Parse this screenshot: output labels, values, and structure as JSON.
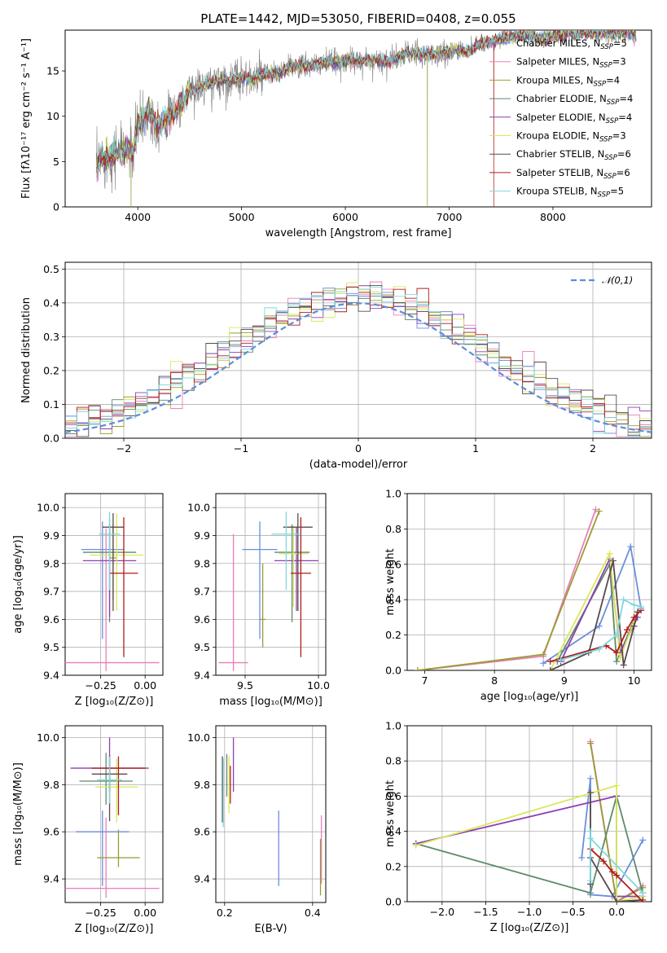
{
  "title": "PLATE=1442, MJD=53050, FIBERID=0408, z=0.055",
  "colors": [
    "#6a8fdc",
    "#e87fb8",
    "#9b9b33",
    "#5f8a6a",
    "#8e3fb0",
    "#d8e85a",
    "#5a4a4a",
    "#b01c1c",
    "#7fd8dc"
  ],
  "series_names": [
    "Chabrier MILES, N$_{SSP}$=5",
    "Salpeter MILES, N$_{SSP}$=3",
    "Kroupa MILES, N$_{SSP}$=4",
    "Chabrier ELODIE, N$_{SSP}$=4",
    "Salpeter ELODIE, N$_{SSP}$=4",
    "Kroupa ELODIE, N$_{SSP}$=3",
    "Chabrier STELIB, N$_{SSP}$=6",
    "Salpeter STELIB, N$_{SSP}$=6",
    "Kroupa STELIB, N$_{SSP}$=5"
  ],
  "legend_labels": [
    {
      "name": "Chabrier MILES, N",
      "sub": "SSP",
      "rest": "=5"
    },
    {
      "name": "Salpeter MILES, N",
      "sub": "SSP",
      "rest": "=3"
    },
    {
      "name": "Kroupa MILES, N",
      "sub": "SSP",
      "rest": "=4"
    },
    {
      "name": "Chabrier ELODIE, N",
      "sub": "SSP",
      "rest": "=4"
    },
    {
      "name": "Salpeter ELODIE, N",
      "sub": "SSP",
      "rest": "=4"
    },
    {
      "name": "Kroupa ELODIE, N",
      "sub": "SSP",
      "rest": "=3"
    },
    {
      "name": "Chabrier STELIB, N",
      "sub": "SSP",
      "rest": "=6"
    },
    {
      "name": "Salpeter STELIB, N",
      "sub": "SSP",
      "rest": "=6"
    },
    {
      "name": "Kroupa STELIB, N",
      "sub": "SSP",
      "rest": "=5"
    }
  ],
  "chart_data": [
    {
      "id": "spectrum",
      "type": "line",
      "xlabel": "wavelength [Angstrom, rest frame]",
      "ylabel": "Flux [fλ10⁻¹⁷ erg cm⁻² s⁻¹ A⁻¹]",
      "xlim": [
        3300,
        8950
      ],
      "ylim": [
        0,
        19.5
      ],
      "xticks": [
        4000,
        5000,
        6000,
        7000,
        8000
      ],
      "yticks": [
        0,
        5,
        10,
        15
      ],
      "data_color": "#808080",
      "continuum_x": [
        3600,
        3650,
        3700,
        3800,
        3900,
        3950,
        4000,
        4100,
        4200,
        4300,
        4400,
        4500,
        4600,
        4700,
        4800,
        4900,
        5000,
        5100,
        5200,
        5300,
        5400,
        5500,
        5600,
        5700,
        5800,
        5900,
        6000,
        6100,
        6200,
        6300,
        6400,
        6500,
        6600,
        6700,
        6800,
        6900,
        7000,
        7100,
        7200,
        7300,
        7400,
        7500,
        7600,
        7700,
        7800,
        7900,
        8000,
        8100,
        8200,
        8300,
        8400,
        8500,
        8600,
        8700,
        8800
      ],
      "continuum_y": [
        4.2,
        5.5,
        5.5,
        6.0,
        6.5,
        5.8,
        9.0,
        10.5,
        9.0,
        10.0,
        11.0,
        12.8,
        13.2,
        13.5,
        14.0,
        14.0,
        14.4,
        14.0,
        14.6,
        14.6,
        15.0,
        15.5,
        15.5,
        15.6,
        15.9,
        16.0,
        16.0,
        16.1,
        16.1,
        16.2,
        16.0,
        16.4,
        17.0,
        16.8,
        16.8,
        16.9,
        17.0,
        17.3,
        17.2,
        18.0,
        18.2,
        18.6,
        18.8,
        19.0,
        18.8,
        18.6,
        18.9,
        19.0,
        19.1,
        19.2,
        19.1,
        19.2,
        19.0,
        19.4,
        18.8
      ],
      "dropouts": [
        {
          "series": 2,
          "x": 3935
        },
        {
          "series": 2,
          "x": 6790
        },
        {
          "series": 7,
          "x": 7430
        }
      ]
    },
    {
      "id": "residuals",
      "type": "histogram",
      "xlabel": "(data-model)/error",
      "ylabel": "Normed distribution",
      "xlim": [
        -2.5,
        2.5
      ],
      "ylim": [
        0,
        0.52
      ],
      "xticks": [
        -2,
        -1,
        0,
        1,
        2
      ],
      "yticks": [
        0,
        0.1,
        0.2,
        0.3,
        0.4,
        0.5
      ],
      "bin_width": 0.1,
      "gaussian_label": "𝒩(0,1)"
    },
    {
      "id": "age_vs_Z",
      "type": "errorbar",
      "xlabel": "Z [log₁₀(Z/Z⊙)]",
      "ylabel": "age  [log₁₀(age/yr)]",
      "xlim": [
        -0.45,
        0.1
      ],
      "ylim": [
        9.4,
        10.05
      ],
      "xticks": [
        -0.25,
        0.0
      ],
      "yticks": [
        9.4,
        9.5,
        9.6,
        9.7,
        9.8,
        9.9,
        10.0
      ],
      "points": [
        {
          "x": -0.24,
          "xerr": 0.12,
          "y": 9.85,
          "yerr_lo": 0.32,
          "yerr_hi": 0.1
        },
        {
          "x": -0.22,
          "xerr": 0.3,
          "y": 9.445,
          "yerr_lo": 0.03,
          "yerr_hi": 0.48
        },
        {
          "x": -0.18,
          "xerr": 0.02,
          "y": 9.82,
          "yerr_lo": 0.15,
          "yerr_hi": 0.12
        },
        {
          "x": -0.2,
          "xerr": 0.15,
          "y": 9.84,
          "yerr_lo": 0.25,
          "yerr_hi": 0.12
        },
        {
          "x": -0.2,
          "xerr": 0.15,
          "y": 9.81,
          "yerr_lo": 0.2,
          "yerr_hi": 0.13
        },
        {
          "x": -0.16,
          "xerr": 0.15,
          "y": 9.83,
          "yerr_lo": 0.2,
          "yerr_hi": 0.15
        },
        {
          "x": -0.18,
          "xerr": 0.06,
          "y": 9.93,
          "yerr_lo": 0.3,
          "yerr_hi": 0.05
        },
        {
          "x": -0.12,
          "xerr": 0.08,
          "y": 9.765,
          "yerr_lo": 0.3,
          "yerr_hi": 0.2
        },
        {
          "x": -0.2,
          "xerr": 0.06,
          "y": 9.905,
          "yerr_lo": 0.2,
          "yerr_hi": 0.08
        }
      ]
    },
    {
      "id": "age_vs_mass",
      "type": "errorbar",
      "xlabel": "mass [log₁₀(M/M⊙)]",
      "xlim": [
        9.3,
        10.05
      ],
      "ylim": [
        9.4,
        10.05
      ],
      "xticks": [
        9.5,
        10.0
      ],
      "yticks": [
        9.4,
        9.5,
        9.6,
        9.7,
        9.8,
        9.9,
        10.0
      ],
      "points": [
        {
          "x": 9.6,
          "xerr": 0.12,
          "y": 9.85,
          "yerr_lo": 0.32,
          "yerr_hi": 0.1
        },
        {
          "x": 9.42,
          "xerr": 0.1,
          "y": 9.445,
          "yerr_lo": 0.03,
          "yerr_hi": 0.46
        },
        {
          "x": 9.62,
          "xerr": 0.02,
          "y": 9.6,
          "yerr_lo": 0.1,
          "yerr_hi": 0.2
        },
        {
          "x": 9.82,
          "xerr": 0.12,
          "y": 9.84,
          "yerr_lo": 0.25,
          "yerr_hi": 0.1
        },
        {
          "x": 9.85,
          "xerr": 0.15,
          "y": 9.81,
          "yerr_lo": 0.18,
          "yerr_hi": 0.12
        },
        {
          "x": 9.83,
          "xerr": 0.1,
          "y": 9.835,
          "yerr_lo": 0.19,
          "yerr_hi": 0.1
        },
        {
          "x": 9.86,
          "xerr": 0.1,
          "y": 9.93,
          "yerr_lo": 0.3,
          "yerr_hi": 0.05
        },
        {
          "x": 9.88,
          "xerr": 0.07,
          "y": 9.765,
          "yerr_lo": 0.3,
          "yerr_hi": 0.2
        },
        {
          "x": 9.78,
          "xerr": 0.1,
          "y": 9.905,
          "yerr_lo": 0.2,
          "yerr_hi": 0.08
        }
      ]
    },
    {
      "id": "weight_vs_age",
      "type": "line",
      "xlabel": "age  [log₁₀(age/yr)]",
      "ylabel": "mass weight",
      "xlim": [
        6.75,
        10.25
      ],
      "ylim": [
        0,
        1
      ],
      "xticks": [
        7,
        8,
        9,
        10
      ],
      "yticks": [
        0,
        0.2,
        0.4,
        0.6,
        0.8,
        1.0
      ],
      "series": [
        {
          "x": [
            8.7,
            9.5,
            9.95,
            10.1
          ],
          "y": [
            0.04,
            0.25,
            0.7,
            0.35
          ]
        },
        {
          "x": [
            6.9,
            8.7,
            9.45
          ],
          "y": [
            0.0,
            0.08,
            0.91
          ]
        },
        {
          "x": [
            6.9,
            8.7,
            9.5
          ],
          "y": [
            0.0,
            0.09,
            0.9
          ]
        },
        {
          "x": [
            8.9,
            9.65,
            9.75,
            10.05
          ],
          "y": [
            0.05,
            0.6,
            0.05,
            0.33
          ]
        },
        {
          "x": [
            8.95,
            9.65,
            9.8,
            10.05
          ],
          "y": [
            0.05,
            0.63,
            0.1,
            0.3
          ]
        },
        {
          "x": [
            8.8,
            9.65,
            9.8,
            10.05
          ],
          "y": [
            0.0,
            0.66,
            0.07,
            0.33
          ]
        },
        {
          "x": [
            8.8,
            9.35,
            9.7,
            9.85,
            10.0,
            10.05
          ],
          "y": [
            0.0,
            0.1,
            0.62,
            0.03,
            0.25,
            0.33
          ]
        },
        {
          "x": [
            8.8,
            9.6,
            9.75,
            9.9,
            10.0,
            10.1
          ],
          "y": [
            0.05,
            0.14,
            0.1,
            0.23,
            0.3,
            0.34
          ]
        },
        {
          "x": [
            8.95,
            9.5,
            9.75,
            9.85,
            10.0,
            10.1
          ],
          "y": [
            0.06,
            0.12,
            0.2,
            0.4,
            0.37,
            0.36
          ]
        }
      ]
    },
    {
      "id": "mass_vs_Z",
      "type": "errorbar",
      "xlabel": "Z [log₁₀(Z/Z⊙)]",
      "ylabel": "mass [log₁₀(M/M⊙)]",
      "xlim": [
        -0.45,
        0.1
      ],
      "ylim": [
        9.3,
        10.05
      ],
      "xticks": [
        -0.25,
        0.0
      ],
      "yticks": [
        9.4,
        9.6,
        9.8,
        10.0
      ],
      "points": [
        {
          "x": -0.24,
          "xerr": 0.15,
          "y": 9.6,
          "yerr_lo": 0.23,
          "yerr_hi": 0.09
        },
        {
          "x": -0.22,
          "xerr": 0.3,
          "y": 9.36,
          "yerr_lo": 0.04,
          "yerr_hi": 0.3
        },
        {
          "x": -0.15,
          "xerr": 0.12,
          "y": 9.49,
          "yerr_lo": 0.04,
          "yerr_hi": 0.12
        },
        {
          "x": -0.22,
          "xerr": 0.15,
          "y": 9.815,
          "yerr_lo": 0.1,
          "yerr_hi": 0.12
        },
        {
          "x": -0.2,
          "xerr": 0.22,
          "y": 9.87,
          "yerr_lo": 0.1,
          "yerr_hi": 0.13
        },
        {
          "x": -0.16,
          "xerr": 0.12,
          "y": 9.79,
          "yerr_lo": 0.15,
          "yerr_hi": 0.12
        },
        {
          "x": -0.2,
          "xerr": 0.1,
          "y": 9.845,
          "yerr_lo": 0.2,
          "yerr_hi": 0.08
        },
        {
          "x": -0.15,
          "xerr": 0.15,
          "y": 9.87,
          "yerr_lo": 0.2,
          "yerr_hi": 0.05
        },
        {
          "x": -0.2,
          "xerr": 0.07,
          "y": 9.82,
          "yerr_lo": 0.1,
          "yerr_hi": 0.1
        }
      ]
    },
    {
      "id": "mass_vs_EBV",
      "type": "errorbar",
      "xlabel": "E(B-V)",
      "xlim": [
        0.18,
        0.43
      ],
      "ylim": [
        9.3,
        10.05
      ],
      "xticks": [
        0.2,
        0.4
      ],
      "yticks": [
        9.4,
        9.6,
        9.8,
        10.0
      ],
      "points": [
        {
          "x": 0.323,
          "xerr": 0,
          "y": 9.53,
          "yerr_lo": 0.16,
          "yerr_hi": 0.16
        },
        {
          "x": 0.42,
          "xerr": 0,
          "y": 9.5,
          "yerr_lo": 0.12,
          "yerr_hi": 0.17
        },
        {
          "x": 0.418,
          "xerr": 0,
          "y": 9.45,
          "yerr_lo": 0.12,
          "yerr_hi": 0.12
        },
        {
          "x": 0.205,
          "xerr": 0,
          "y": 9.85,
          "yerr_lo": 0.1,
          "yerr_hi": 0.08
        },
        {
          "x": 0.22,
          "xerr": 0,
          "y": 9.87,
          "yerr_lo": 0.1,
          "yerr_hi": 0.13
        },
        {
          "x": 0.21,
          "xerr": 0,
          "y": 9.8,
          "yerr_lo": 0.12,
          "yerr_hi": 0.12
        },
        {
          "x": 0.195,
          "xerr": 0,
          "y": 9.8,
          "yerr_lo": 0.16,
          "yerr_hi": 0.12
        },
        {
          "x": 0.213,
          "xerr": 0,
          "y": 9.79,
          "yerr_lo": 0.07,
          "yerr_hi": 0.09
        },
        {
          "x": 0.197,
          "xerr": 0,
          "y": 9.76,
          "yerr_lo": 0.14,
          "yerr_hi": 0.15
        }
      ]
    },
    {
      "id": "weight_vs_Z",
      "type": "line",
      "xlabel": "Z [log₁₀(Z/Z⊙)]",
      "ylabel": "mass weight",
      "xlim": [
        -2.4,
        0.4
      ],
      "ylim": [
        0,
        1
      ],
      "xticks": [
        -2.0,
        -1.5,
        -1.0,
        -0.5,
        0.0
      ],
      "yticks": [
        0,
        0.2,
        0.4,
        0.6,
        0.8,
        1.0
      ],
      "series": [
        {
          "x": [
            -0.4,
            -0.3,
            -0.3,
            -0.05,
            0.3
          ],
          "y": [
            0.25,
            0.7,
            0.04,
            0.03,
            0.35
          ]
        },
        {
          "x": [
            -0.3,
            0.0,
            0.3
          ],
          "y": [
            0.91,
            0.0,
            0.09
          ]
        },
        {
          "x": [
            -0.3,
            0.0,
            0.3
          ],
          "y": [
            0.9,
            0.0,
            0.08
          ]
        },
        {
          "x": [
            -2.3,
            -0.3,
            0.0,
            0.3
          ],
          "y": [
            0.33,
            0.05,
            0.6,
            0.05
          ]
        },
        {
          "x": [
            -2.3,
            0.0,
            0.0,
            0.3
          ],
          "y": [
            0.33,
            0.6,
            0.03,
            0.03
          ]
        },
        {
          "x": [
            -2.3,
            0.0,
            0.0,
            0.3
          ],
          "y": [
            0.32,
            0.66,
            0.0,
            0.03
          ]
        },
        {
          "x": [
            -0.3,
            -0.3,
            -0.3,
            0.0,
            0.3
          ],
          "y": [
            0.62,
            0.1,
            0.25,
            0.0,
            0.01
          ]
        },
        {
          "x": [
            -0.3,
            -0.15,
            -0.05,
            0.0,
            0.3
          ],
          "y": [
            0.3,
            0.23,
            0.17,
            0.15,
            0.0
          ]
        },
        {
          "x": [
            -0.3,
            -0.3,
            -0.3,
            -0.3,
            0.3
          ],
          "y": [
            0.12,
            0.2,
            0.4,
            0.36,
            0.05
          ]
        }
      ]
    }
  ]
}
